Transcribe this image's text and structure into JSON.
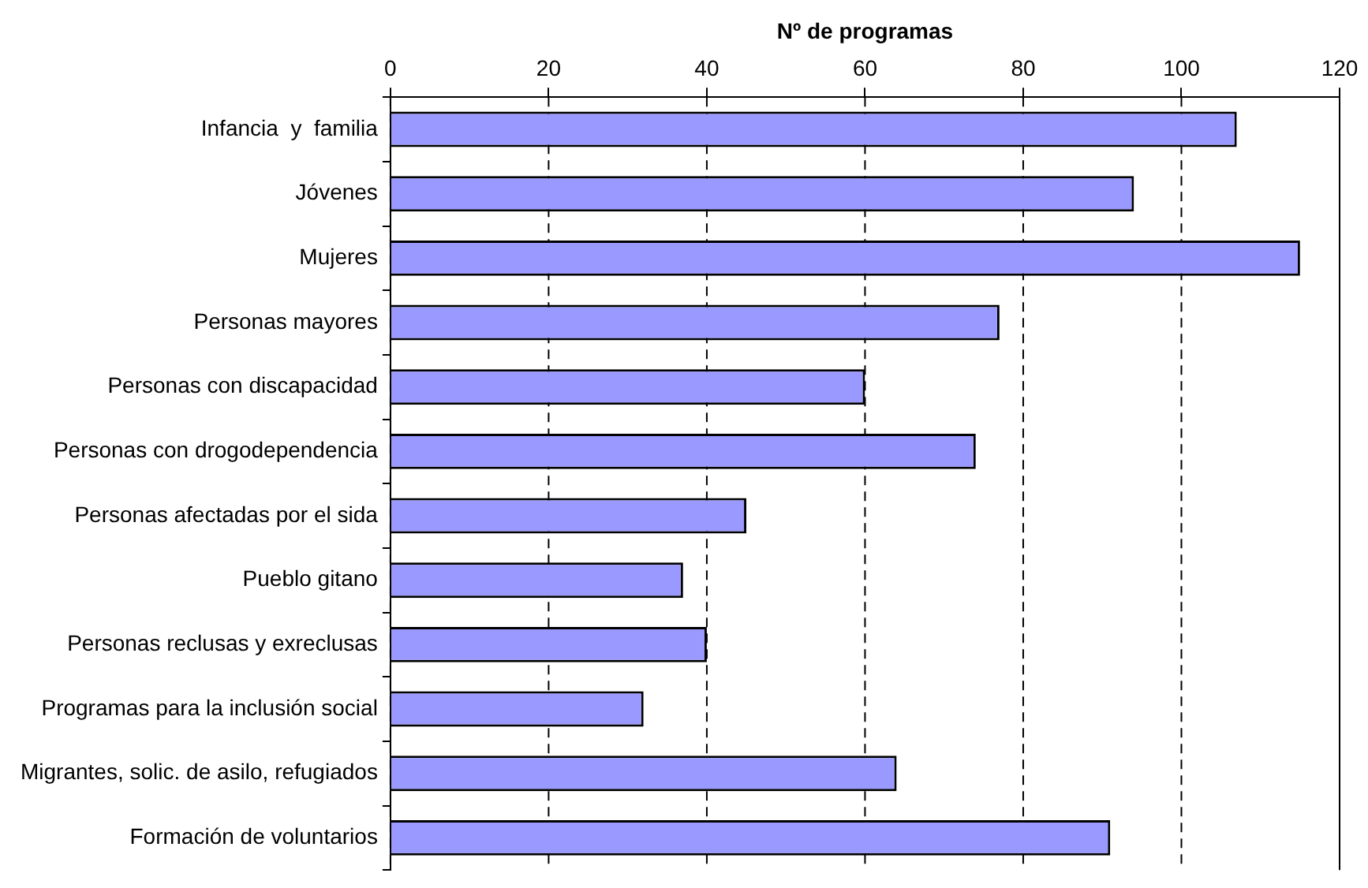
{
  "chart_data": {
    "type": "bar",
    "orientation": "horizontal",
    "xlabel": "Nº de programas",
    "categories": [
      "Infancia  y  familia",
      "Jóvenes",
      "Mujeres",
      "Personas mayores",
      "Personas con discapacidad",
      "Personas con drogodependencia",
      "Personas afectadas por el sida",
      "Pueblo gitano",
      "Personas reclusas y exreclusas",
      "Programas para la inclusión social",
      "Migrantes, solic. de asilo, refugiados",
      "Formación de voluntarios"
    ],
    "values": [
      107,
      94,
      115,
      77,
      60,
      74,
      45,
      37,
      40,
      32,
      64,
      91
    ],
    "color": "#9999ff",
    "xlim": [
      0,
      120
    ],
    "xticks": [
      0,
      20,
      40,
      60,
      80,
      100,
      120
    ],
    "grid": "x",
    "line_style": "dashed",
    "legend": false
  }
}
